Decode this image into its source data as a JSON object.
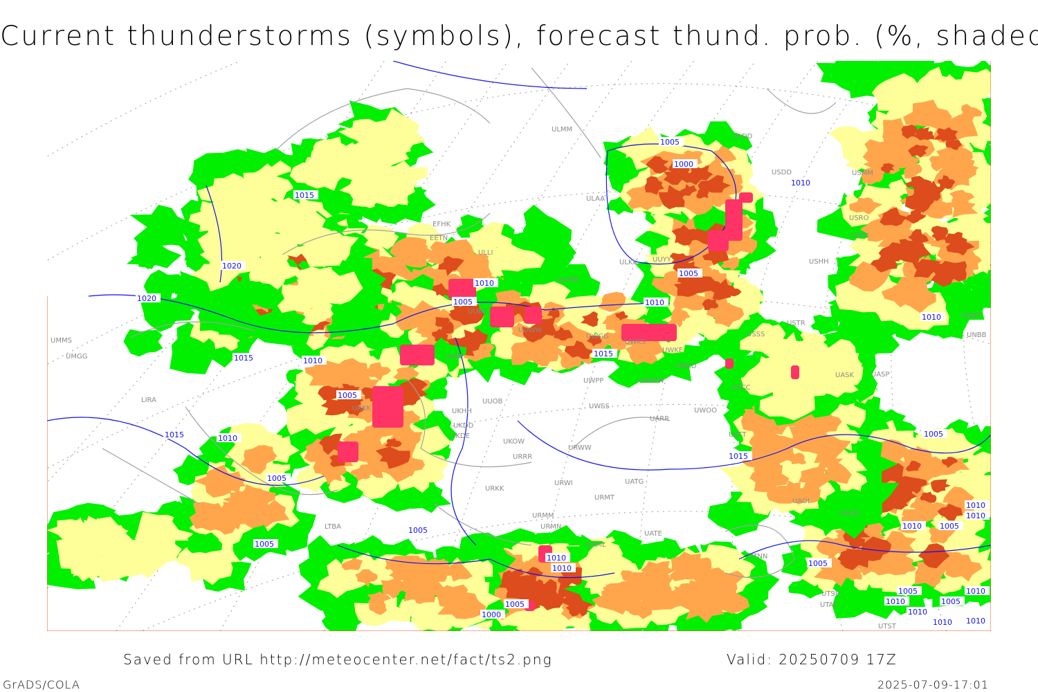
{
  "title": "Current thunderstorms (symbols), forecast thund. prob. (%, shaded)",
  "footer": {
    "source": "Saved from URL http://meteocenter.net/fact/ts2.png",
    "valid": "Valid: 20250709 17Z",
    "software": "GrADS/COLA",
    "timestamp": "2025-07-09-17:01"
  },
  "colors": {
    "prob_low": "#00f000",
    "prob_mid": "#ffff99",
    "prob_high": "#ffa64d",
    "prob_very_high": "#dd4c1c",
    "thunderstorm_symbols": "#ff3366",
    "isobars": "#0000ff",
    "borders": "#a0a0a0"
  },
  "isobar_labels": [
    "1005",
    "1000",
    "1010",
    "1015",
    "1020",
    "1020",
    "1015",
    "1010",
    "1005",
    "1010",
    "1005",
    "1010",
    "1005",
    "1015",
    "1010",
    "1005",
    "1010",
    "1015",
    "1015",
    "1010",
    "1005",
    "1005",
    "1005",
    "1010",
    "1005",
    "1000",
    "1010",
    "1010",
    "1010",
    "1005",
    "1005",
    "1010",
    "1010",
    "1005",
    "1010",
    "1010",
    "1005",
    "1010"
  ],
  "stations": [
    "ULMM",
    "ULDD",
    "USDD",
    "USMM",
    "EFHK",
    "EETN",
    "ULLI",
    "ULAA",
    "USRO",
    "USRK",
    "ULKK",
    "UUYY",
    "ULWW",
    "USHH",
    "UUEE",
    "UUWW",
    "UWGG",
    "UWKS",
    "UWKE",
    "USTR",
    "USSS",
    "UNNT",
    "UNBB",
    "UMMS",
    "UMGG",
    "UUBP",
    "UWPP",
    "UWWW",
    "UWKD",
    "USCC",
    "UASK",
    "UASP",
    "LIRA",
    "UKKK",
    "UKDD",
    "UKDE",
    "UKHH",
    "UUOB",
    "UKOW",
    "UWSS",
    "UARR",
    "UWOO",
    "UATT",
    "URWW",
    "URRR",
    "URWI",
    "UATG",
    "URKK",
    "URMT",
    "URMM",
    "URMN",
    "UATE",
    "URML",
    "UTNN",
    "UAOL",
    "UAOO",
    "UTSB",
    "UTAV",
    "UTST",
    "LTBA"
  ]
}
